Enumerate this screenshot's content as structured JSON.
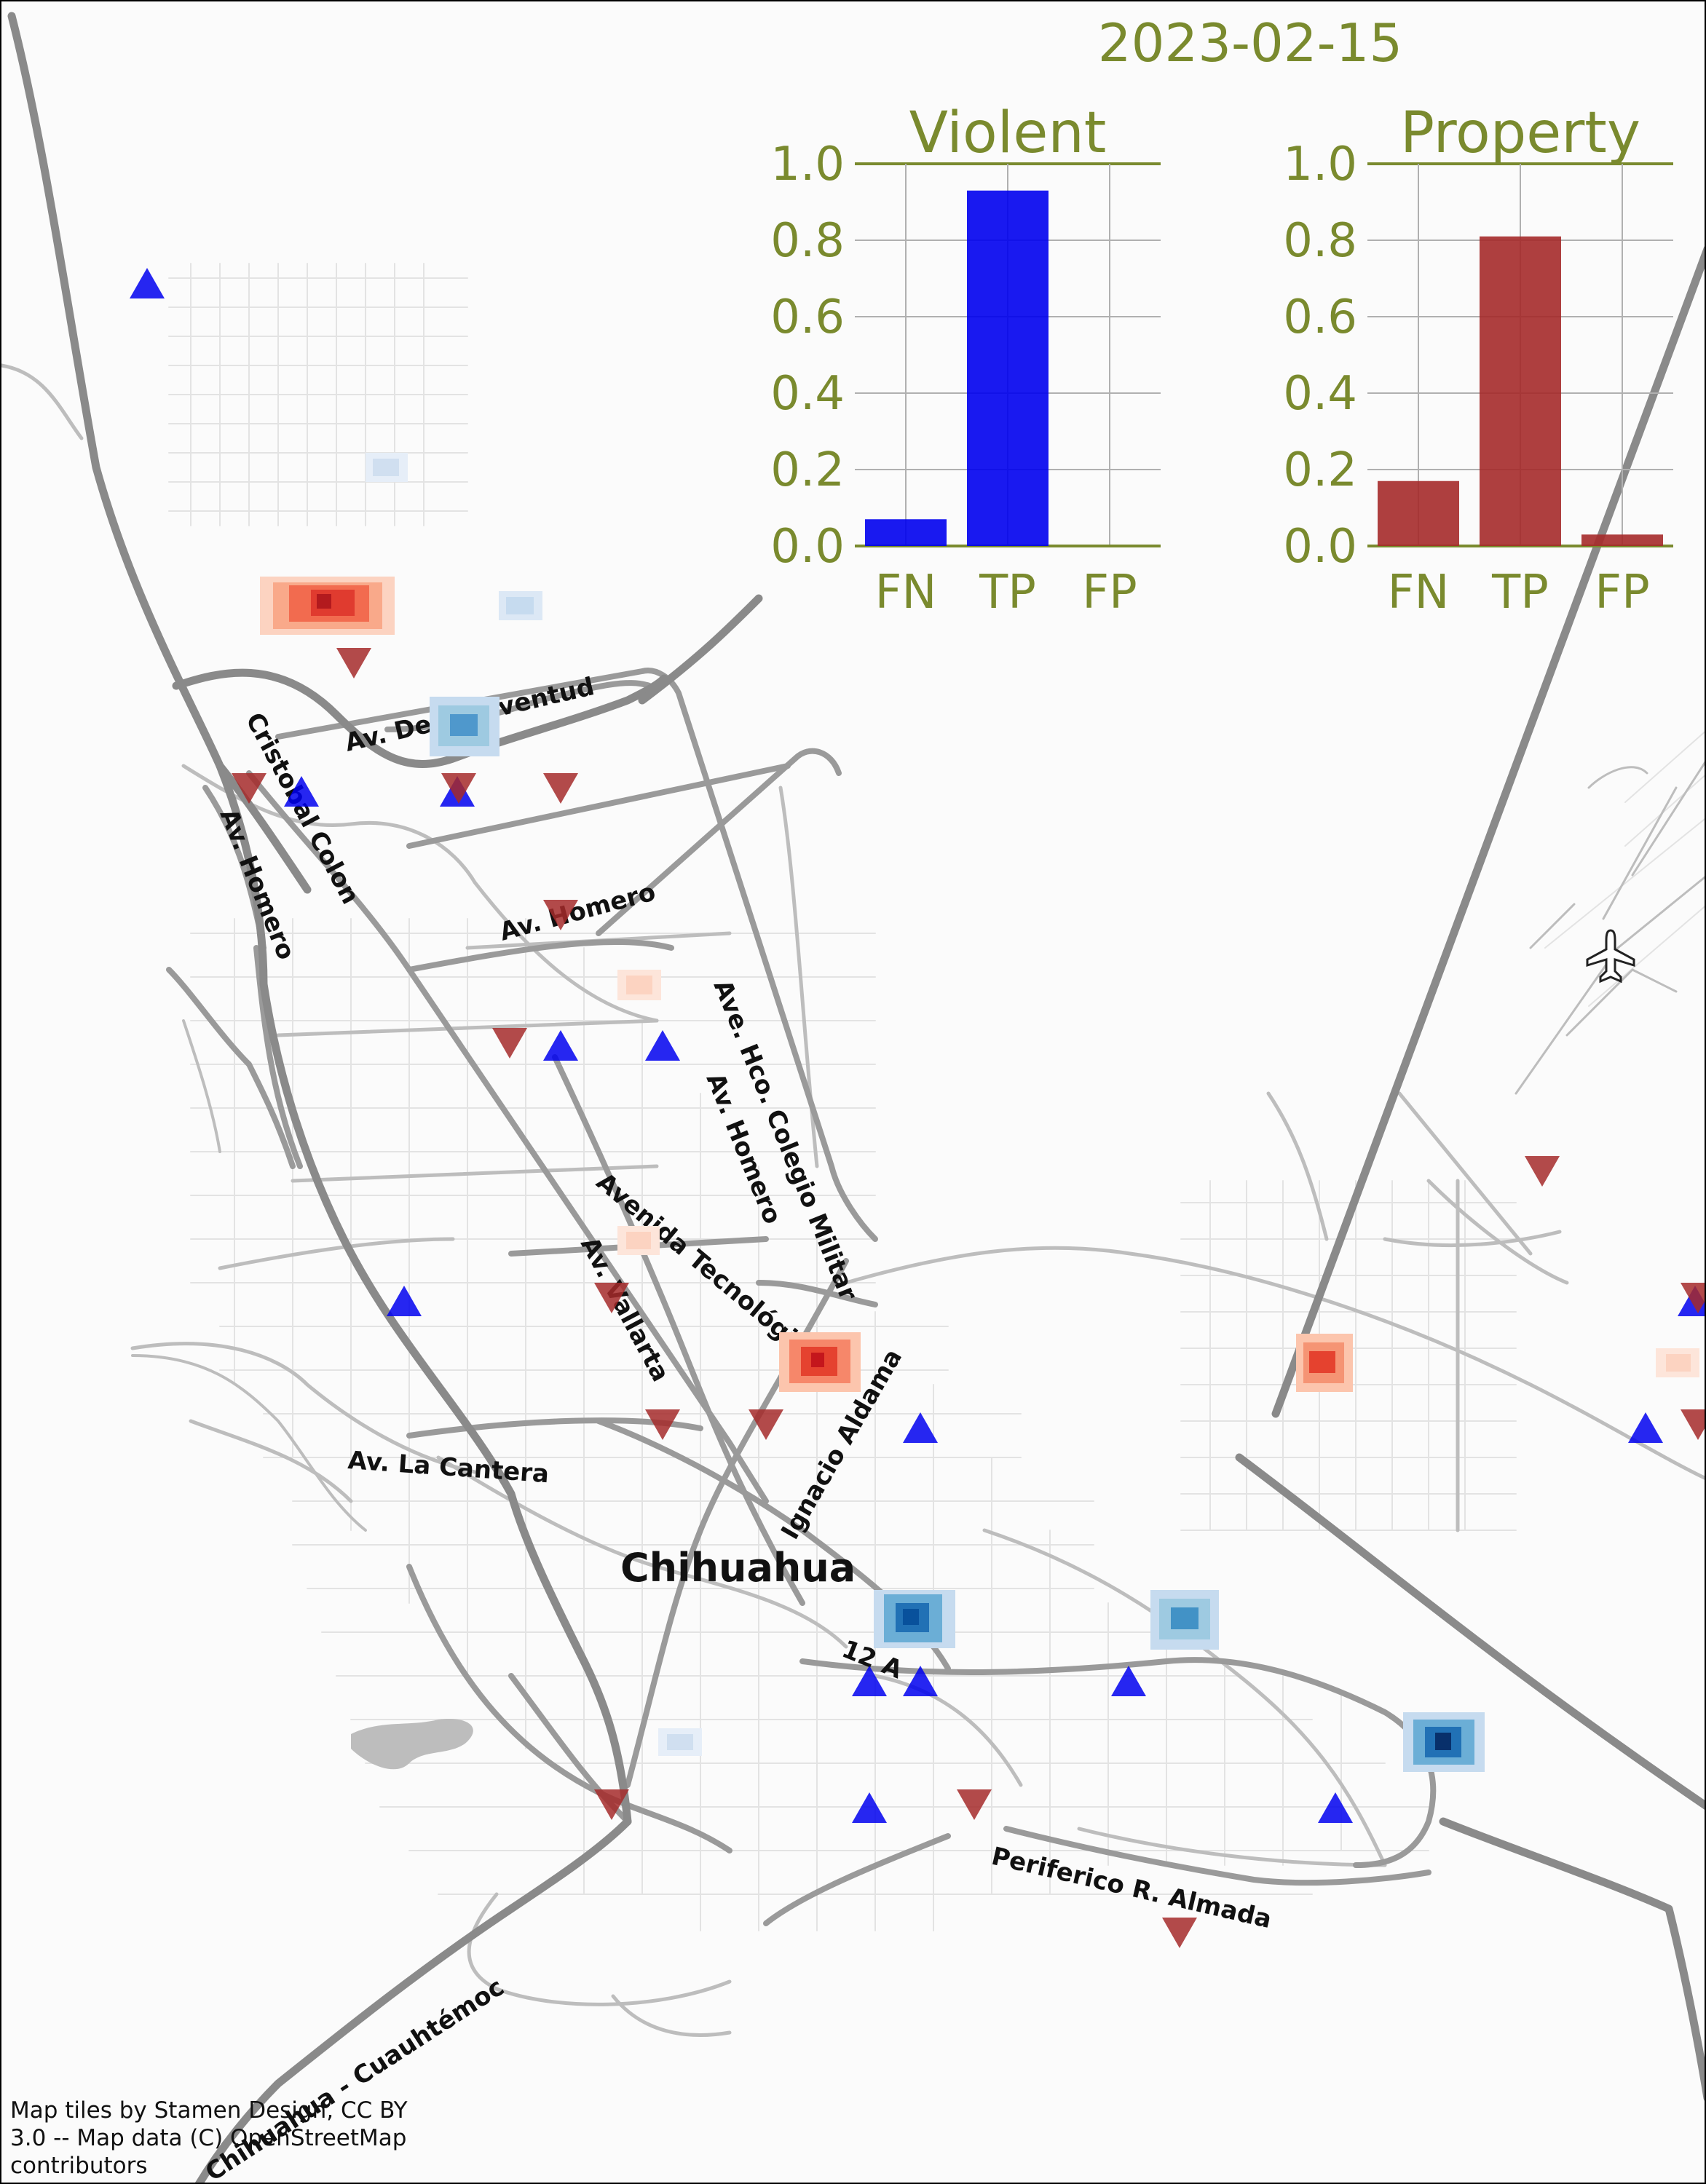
{
  "date_label": "2023-02-15",
  "city_label": "Chihuahua",
  "road_labels": {
    "juventud": "Av. De la Juventud",
    "cristobal_colon": "Cristobal Colon",
    "homero_west": "Av. Homero",
    "homero_mid": "Av. Homero",
    "hco_colegio_militar": "Ave. Hco. Colegio Militar",
    "homero_east": "Av. Homero",
    "tecnologico": "Avenida Tecnológico",
    "vallarta": "Av. Vallarta",
    "la_cantera": "Av. La Cantera",
    "ignacio_aldama": "Ignacio Aldama",
    "route_12a": "12 A",
    "periferico": "Periferico R. Almada",
    "cuauhtemoc": "Chihuahua - Cuauhtémoc"
  },
  "attribution": {
    "line1": "Map tiles by Stamen Design, CC BY",
    "line2": "3.0 -- Map data (C) OpenStreetMap",
    "line3": "contributors"
  },
  "colors": {
    "violent": "#0000ee",
    "property": "#a52a2a",
    "chart_text": "#7a8a2e",
    "chart_grid": "#b0b0b0"
  },
  "icons": [
    "airport-icon",
    "triangle-up-marker",
    "triangle-down-marker"
  ],
  "chart_data": [
    {
      "type": "bar",
      "title": "Violent",
      "categories": [
        "FN",
        "TP",
        "FP"
      ],
      "values": [
        0.07,
        0.93,
        0.0
      ],
      "ylim": [
        0,
        1.0
      ],
      "yticks": [
        "0.0",
        "0.2",
        "0.4",
        "0.6",
        "0.8",
        "1.0"
      ],
      "grid": true,
      "color": "#0000ee"
    },
    {
      "type": "bar",
      "title": "Property",
      "categories": [
        "FN",
        "TP",
        "FP"
      ],
      "values": [
        0.17,
        0.81,
        0.03
      ],
      "ylim": [
        0,
        1.0
      ],
      "yticks": [
        "0.0",
        "0.2",
        "0.4",
        "0.6",
        "0.8",
        "1.0"
      ],
      "grid": true,
      "color": "#a52a2a"
    }
  ],
  "markers": {
    "violent": [
      "v1",
      "v2",
      "v3",
      "v4",
      "v5",
      "v6",
      "v7",
      "v8",
      "v9",
      "v10",
      "v11",
      "v12",
      "v13",
      "v14",
      "v15"
    ],
    "property": [
      "p1",
      "p2",
      "p3",
      "p4",
      "p5",
      "p6",
      "p7",
      "p8",
      "p9",
      "p10",
      "p11",
      "p12",
      "p13",
      "p14",
      "p15"
    ]
  },
  "hotspots": {
    "property": [
      "h1",
      "h2",
      "h3",
      "h4",
      "h5",
      "h6"
    ],
    "violent": [
      "b1",
      "b2",
      "b3",
      "b4",
      "b5",
      "b6",
      "b7",
      "b8"
    ]
  }
}
